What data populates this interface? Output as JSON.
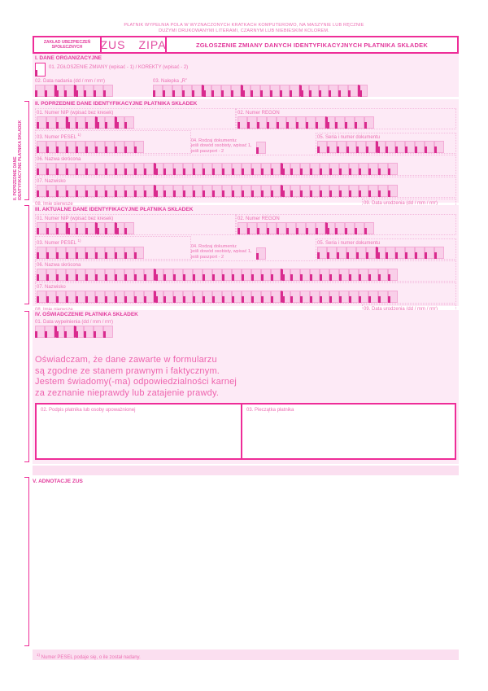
{
  "palette": {
    "accent": "#ee2d98",
    "section_title": "#e23a9c",
    "field_label": "#ec6eb2",
    "cell_fill": "#f9cfe9",
    "cell_border": "#f3abd6",
    "cell_tick": "#d92a8e",
    "panel_bg": "#fdeaf6",
    "strip_bg": "#fbdff0"
  },
  "page": {
    "instruction_line1": "PŁATNIK WYPEŁNIA POLA W WYZNACZONYCH KRATKACH KOMPUTEROWO, NA MASZYNIE LUB RĘCZNIE",
    "instruction_line2": "DUŻYMI DRUKOWANYMI LITERAMI, CZARNYM LUB NIEBIESKIM KOLOREM.",
    "footnote_marker": "1)",
    "footnote": " Numer PESEL podaje się, o ile został nadany."
  },
  "header": {
    "org_name_line1": "ZAKŁAD UBEZPIECZEŃ",
    "org_name_line2": "SPOŁECZNYCH",
    "form_code_left": "ZUS",
    "form_code_right": "ZIPA",
    "form_title": "ZGŁOSZENIE ZMIANY DANYCH IDENTYFIKACYJNYCH PŁATNIKA SKŁADEK"
  },
  "section1": {
    "title": "I. DANE ORGANIZACYJNE",
    "field01_label": "01. ZGŁOSZENIE ZMIANY (wpisać - 1) / KOREKTY (wpisać - 2)",
    "field02_label": "02. Data nadania (dd / mm / rrrr)",
    "field03_label": "03. Nalepka „R”"
  },
  "id_fields": {
    "nip": "01. Numer NIP (wpisać bez kresek)",
    "regon": "02. Numer REGON",
    "pesel": "03. Numer PESEL ",
    "pesel_sup": "1)",
    "doc_type_line1": "04. Rodzaj dokumentu:",
    "doc_type_line2": "jeśli dowód osobisty, wpisać 1,",
    "doc_type_line3": "jeśli paszport - 2",
    "doc_series": "05. Seria i numer dokumentu",
    "short_name": "06. Nazwa  skrócona",
    "surname": "07. Nazwisko",
    "first_name": "08. Imię pierwsze",
    "birth_date": "09. Data urodzenia (dd / mm / rrrr)"
  },
  "section2": {
    "title": "II. POPRZEDNIE DANE IDENTYFIKACYJNE PŁATNIKA SKŁADEK",
    "side_label_line1": "II. POPRZEDNIE DANE",
    "side_label_line2": "IDENTYFIKACYJNE PŁATNIKA SKŁADEK"
  },
  "section3": {
    "title": "III. AKTUALNE DANE IDENTYFIKACYJNE PŁATNIKA SKŁADEK"
  },
  "section4": {
    "title": "IV. OŚWIADCZENIE PŁATNIKA SKŁADEK",
    "date_label": "01. Data wypełnienia (dd / mm / rrrr)",
    "declaration_lines": [
      "Oświadczam, że dane zawarte w formularzu",
      "są zgodne ze stanem prawnym i faktycznym.",
      "Jestem świadomy(-ma) odpowiedzialności karnej",
      "za zeznanie nieprawdy lub zatajenie prawdy."
    ],
    "signature_label": "02. Podpis płatnika lub osoby upoważnionej",
    "stamp_label": "03. Pieczątka płatnika"
  },
  "section5": {
    "title": "V. ADNOTACJE ZUS"
  },
  "combs": {
    "date8": {
      "count": 8,
      "seps": [
        2,
        4
      ]
    },
    "nalepka": {
      "count": 22,
      "seps": [
        5,
        9,
        15,
        21
      ]
    },
    "nip": {
      "count": 10,
      "seps": [
        3,
        6,
        8
      ]
    },
    "regon": {
      "count": 14,
      "seps": [
        9
      ]
    },
    "pesel": {
      "count": 11,
      "seps": []
    },
    "single": {
      "count": 1,
      "seps": []
    },
    "series": {
      "count": 13,
      "seps": [
        6
      ]
    },
    "fullrow": {
      "count": 37,
      "seps": [
        12,
        25
      ]
    },
    "firstname": {
      "count": 29,
      "seps": [
        10,
        20
      ]
    }
  }
}
